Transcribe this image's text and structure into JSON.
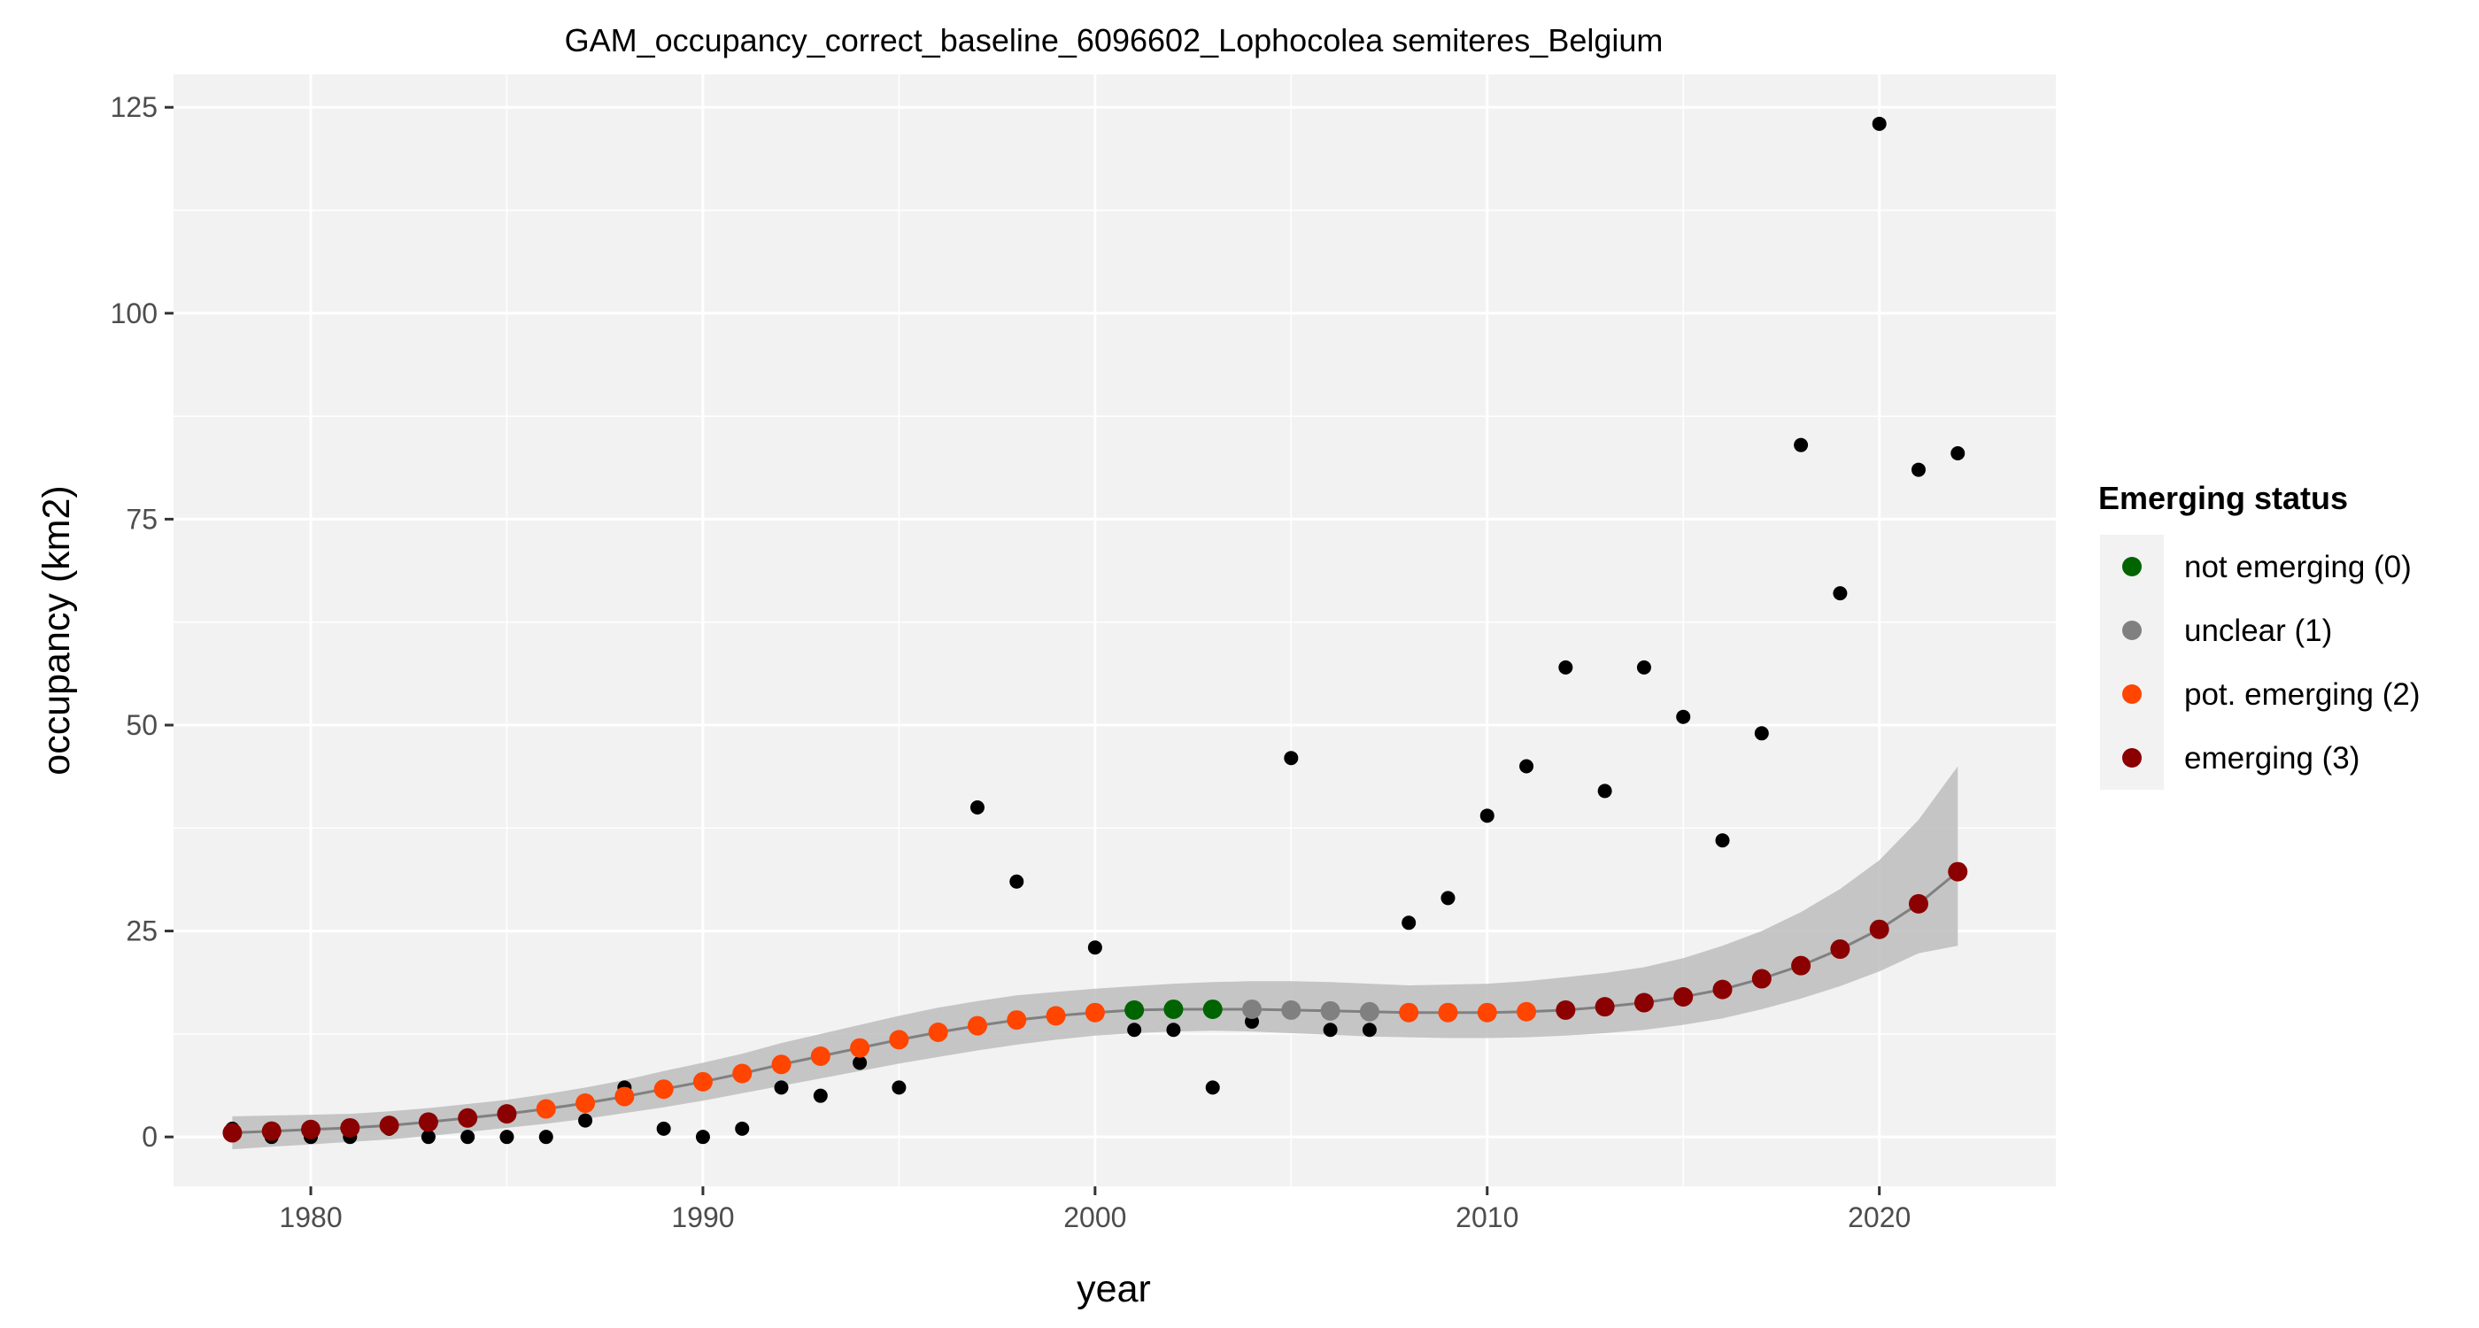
{
  "chart_data": {
    "type": "scatter",
    "title": "GAM_occupancy_correct_baseline_6096602_Lophocolea semiteres_Belgium",
    "xlabel": "year",
    "ylabel": "occupancy (km2)",
    "xlim": [
      1976.5,
      2024.5
    ],
    "ylim": [
      -6,
      129
    ],
    "x_ticks": [
      1980,
      1990,
      2000,
      2010,
      2020
    ],
    "y_ticks": [
      0,
      25,
      50,
      75,
      100,
      125
    ],
    "grid": true,
    "background_color": "#f2f2f2",
    "legend": {
      "title": "Emerging status",
      "placement": "right",
      "entries": [
        {
          "label": "not emerging (0)",
          "color": "#006400",
          "status": 0
        },
        {
          "label": "unclear (1)",
          "color": "#808080",
          "status": 1
        },
        {
          "label": "pot. emerging (2)",
          "color": "#ff4500",
          "status": 2
        },
        {
          "label": "emerging (3)",
          "color": "#8b0000",
          "status": 3
        }
      ]
    },
    "observed": {
      "color": "#000000",
      "x": [
        1978,
        1979,
        1980,
        1981,
        1982,
        1983,
        1984,
        1985,
        1986,
        1987,
        1988,
        1989,
        1990,
        1991,
        1992,
        1993,
        1994,
        1995,
        1996,
        1997,
        1998,
        1999,
        2000,
        2001,
        2002,
        2003,
        2004,
        2005,
        2006,
        2007,
        2008,
        2009,
        2010,
        2011,
        2012,
        2013,
        2014,
        2015,
        2016,
        2017,
        2018,
        2019,
        2020,
        2021,
        2022
      ],
      "y": [
        1,
        0,
        0,
        0,
        1,
        0,
        0,
        0,
        0,
        2,
        6,
        1,
        0,
        1,
        6,
        5,
        9,
        6,
        13,
        40,
        31,
        15,
        23,
        13,
        13,
        6,
        14,
        46,
        13,
        13,
        26,
        29,
        39,
        45,
        57,
        42,
        57,
        51,
        36,
        49,
        84,
        66,
        123,
        81,
        83
      ]
    },
    "fitted": {
      "x": [
        1978,
        1979,
        1980,
        1981,
        1982,
        1983,
        1984,
        1985,
        1986,
        1987,
        1988,
        1989,
        1990,
        1991,
        1992,
        1993,
        1994,
        1995,
        1996,
        1997,
        1998,
        1999,
        2000,
        2001,
        2002,
        2003,
        2004,
        2005,
        2006,
        2007,
        2008,
        2009,
        2010,
        2011,
        2012,
        2013,
        2014,
        2015,
        2016,
        2017,
        2018,
        2019,
        2020,
        2021,
        2022
      ],
      "y": [
        0.5,
        0.7,
        0.9,
        1.1,
        1.4,
        1.8,
        2.3,
        2.8,
        3.4,
        4.1,
        4.9,
        5.8,
        6.7,
        7.7,
        8.8,
        9.8,
        10.8,
        11.8,
        12.7,
        13.5,
        14.2,
        14.7,
        15.1,
        15.4,
        15.5,
        15.5,
        15.5,
        15.4,
        15.3,
        15.2,
        15.1,
        15.1,
        15.1,
        15.2,
        15.4,
        15.8,
        16.3,
        17.0,
        17.9,
        19.2,
        20.8,
        22.8,
        25.2,
        28.3,
        32.2
      ],
      "lower": [
        -1.5,
        -1.2,
        -0.9,
        -0.6,
        -0.3,
        0.1,
        0.6,
        1.1,
        1.6,
        2.2,
        2.9,
        3.6,
        4.4,
        5.3,
        6.2,
        7.1,
        8.0,
        8.9,
        9.7,
        10.5,
        11.2,
        11.8,
        12.3,
        12.6,
        12.8,
        12.9,
        12.8,
        12.6,
        12.4,
        12.2,
        12.1,
        12.0,
        12.0,
        12.1,
        12.3,
        12.6,
        13.0,
        13.6,
        14.4,
        15.5,
        16.8,
        18.3,
        20.1,
        22.3,
        23.2
      ],
      "upper": [
        2.5,
        2.6,
        2.7,
        2.8,
        3.1,
        3.5,
        4.0,
        4.5,
        5.2,
        6.0,
        6.9,
        8.0,
        9.0,
        10.1,
        11.4,
        12.5,
        13.6,
        14.7,
        15.7,
        16.5,
        17.2,
        17.6,
        18.0,
        18.3,
        18.6,
        18.8,
        18.9,
        18.9,
        18.8,
        18.6,
        18.4,
        18.5,
        18.6,
        18.9,
        19.4,
        19.9,
        20.6,
        21.7,
        23.2,
        25.0,
        27.3,
        30.1,
        33.6,
        38.5,
        45.0
      ],
      "status": [
        3,
        3,
        3,
        3,
        3,
        3,
        3,
        3,
        2,
        2,
        2,
        2,
        2,
        2,
        2,
        2,
        2,
        2,
        2,
        2,
        2,
        2,
        2,
        0,
        0,
        0,
        1,
        1,
        1,
        1,
        2,
        2,
        2,
        2,
        3,
        3,
        3,
        3,
        3,
        3,
        3,
        3,
        3,
        3,
        3
      ]
    }
  }
}
